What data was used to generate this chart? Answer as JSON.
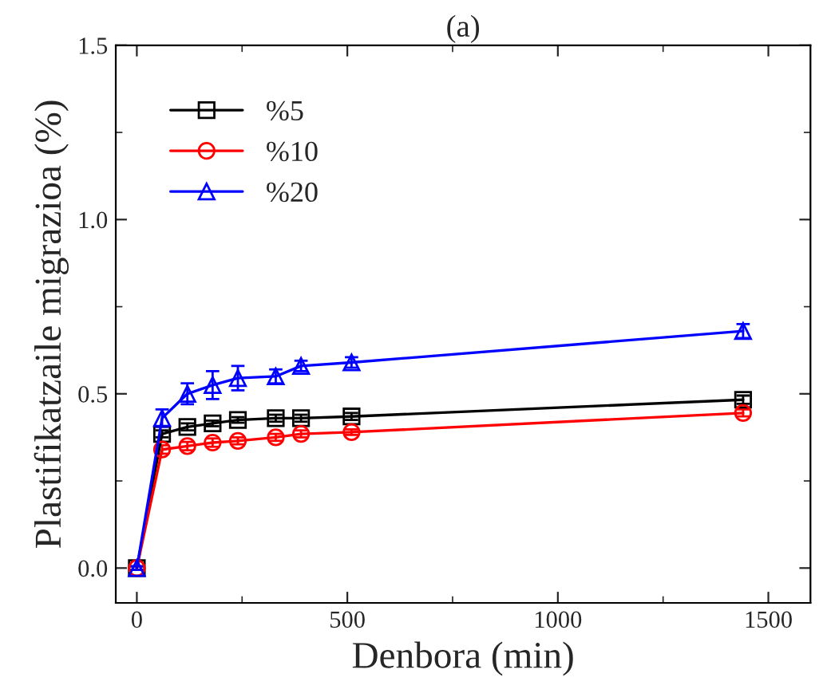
{
  "chart_data": {
    "type": "line",
    "title": "(a)",
    "xlabel": "Denbora (min)",
    "ylabel": "Plastifikatzaile migrazioa (%)",
    "x": [
      0,
      60,
      120,
      180,
      240,
      330,
      390,
      510,
      1440
    ],
    "series": [
      {
        "name": "%5",
        "color": "#000000",
        "marker": "square",
        "values": [
          0,
          0.385,
          0.405,
          0.415,
          0.425,
          0.43,
          0.43,
          0.435,
          0.483
        ],
        "errors": [
          0.005,
          0.01,
          0.01,
          0.008,
          0.008,
          0.01,
          0.01,
          0.01,
          0.012
        ]
      },
      {
        "name": "%10",
        "color": "#ff0000",
        "marker": "circle",
        "values": [
          0,
          0.34,
          0.35,
          0.36,
          0.365,
          0.375,
          0.385,
          0.39,
          0.445
        ],
        "errors": [
          0.005,
          0.012,
          0.012,
          0.012,
          0.01,
          0.01,
          0.01,
          0.008,
          0.01
        ]
      },
      {
        "name": "%20",
        "color": "#0000ff",
        "marker": "triangle",
        "values": [
          0,
          0.43,
          0.5,
          0.525,
          0.545,
          0.55,
          0.58,
          0.59,
          0.68
        ],
        "errors": [
          0.005,
          0.025,
          0.03,
          0.04,
          0.035,
          0.02,
          0.015,
          0.015,
          0.02
        ]
      }
    ],
    "xlim": [
      -50,
      1600
    ],
    "xticks": [
      0,
      500,
      1000,
      1500
    ],
    "ylim": [
      -0.1,
      1.5
    ],
    "yticks": [
      {
        "value": 0,
        "label": "0.0"
      },
      {
        "value": 0.5,
        "label": "0.5"
      },
      {
        "value": 1.0,
        "label": "1.0"
      },
      {
        "value": 1.5,
        "label": "1.5"
      }
    ],
    "grid": false,
    "legend": "top left",
    "line_style": "solid"
  }
}
